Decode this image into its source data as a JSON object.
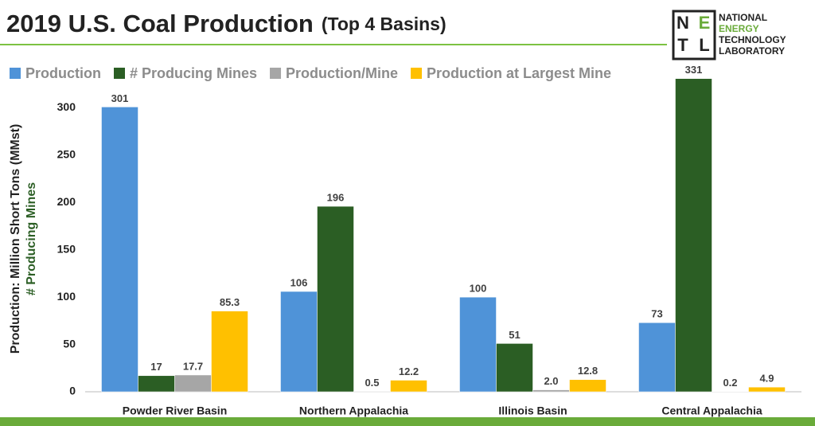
{
  "chart_data": {
    "type": "bar",
    "title": "2019 U.S. Coal Production",
    "subtitle": "(Top 4 Basins)",
    "y_axis_label": "Production: Million Short Tons (MMst)",
    "y_axis_label_2": "# Producing Mines",
    "categories": [
      "Powder River Basin",
      "Northern Appalachia",
      "Illinois Basin",
      "Central Appalachia"
    ],
    "series": [
      {
        "name": "Production",
        "color": "#4f93d8",
        "values": [
          301,
          106,
          100,
          73
        ]
      },
      {
        "name": "# Producing Mines",
        "color": "#2b5e24",
        "values": [
          17,
          196,
          51,
          331
        ]
      },
      {
        "name": "Production/Mine",
        "color": "#a6a6a6",
        "values": [
          17.7,
          0.5,
          2.0,
          0.2
        ],
        "value_labels": [
          "17.7",
          "0.5",
          "2.0",
          "0.2"
        ]
      },
      {
        "name": "Production at Largest Mine",
        "color": "#ffc000",
        "values": [
          85.3,
          12.2,
          12.8,
          4.9
        ]
      }
    ],
    "ylim": [
      0,
      340
    ],
    "yticks": [
      0,
      50,
      100,
      150,
      200,
      250,
      300
    ],
    "grid": false,
    "legend": "top"
  },
  "logo": {
    "letters": [
      "N",
      "E",
      "T",
      "L"
    ],
    "lines": [
      "NATIONAL",
      "ENERGY",
      "TECHNOLOGY",
      "LABORATORY"
    ]
  }
}
